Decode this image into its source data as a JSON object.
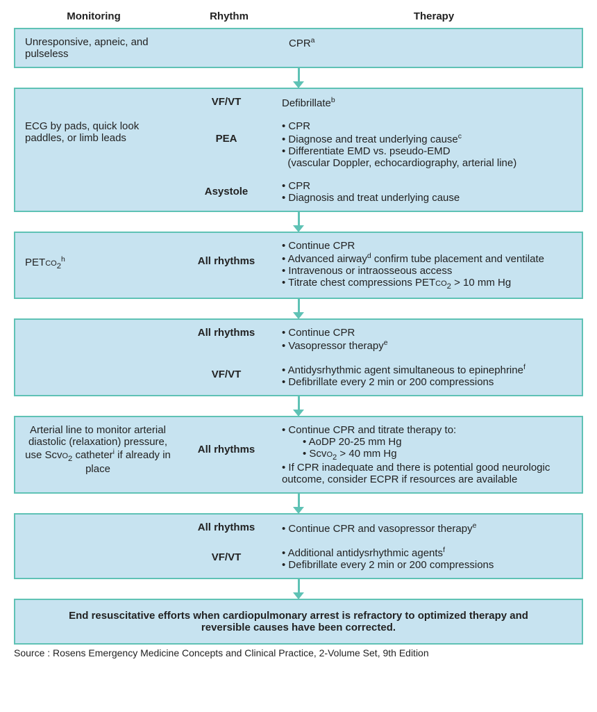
{
  "headers": {
    "monitoring": "Monitoring",
    "rhythm": "Rhythm",
    "therapy": "Therapy"
  },
  "box1": {
    "monitoring": "Unresponsive, apneic, and pulseless",
    "therapy": "CPR",
    "therapy_sup": "a"
  },
  "box2": {
    "monitoring": "ECG by pads, quick look paddles, or limb leads",
    "r1": {
      "rhythm": "VF/VT",
      "therapy": "Defibrillate",
      "sup": "b"
    },
    "r2": {
      "rhythm": "PEA",
      "items": [
        "CPR",
        "Diagnose and treat underlying cause",
        "Differentiate EMD vs. pseudo-EMD"
      ],
      "item1_sup": "c",
      "item2_note": "(vascular Doppler, echocardiography, arterial line)"
    },
    "r3": {
      "rhythm": "Asystole",
      "items": [
        "CPR",
        "Diagnosis and treat underlying cause"
      ]
    }
  },
  "box3": {
    "monitoring_html": "PET<span class='smallcap'>co</span><sub>2</sub><sup>h</sup>",
    "rhythm": "All rhythms",
    "items": [
      "Continue CPR",
      "Advanced airway",
      " confirm tube placement and ventilate",
      "Intravenous or intraosseous access"
    ],
    "item1_sup": "d",
    "last_html": "Titrate chest compressions PET<span class='smallcap'>co</span><sub>2</sub> > 10 mm Hg"
  },
  "box4": {
    "r1": {
      "rhythm": "All rhythms",
      "items": [
        "Continue CPR",
        "Vasopressor therapy"
      ],
      "item1_sup": "e"
    },
    "r2": {
      "rhythm": "VF/VT",
      "items": [
        "Antidysrhythmic agent simultaneous to epinephrine",
        "Defibrillate every 2 min or 200 compressions"
      ],
      "item0_sup": "f"
    }
  },
  "box5": {
    "monitoring_html": "Arterial line to monitor arterial diastolic (relaxation) pressure, use Scv<span class='smallcap'>o</span><sub>2</sub> catheter<sup>i</sup> if already in place",
    "rhythm": "All rhythms",
    "item0": "Continue CPR and titrate therapy to:",
    "sub0": "AoDP 20-25 mm Hg",
    "sub1_html": "Scv<span class='smallcap'>o</span><sub>2</sub> > 40 mm Hg",
    "item1": "If CPR inadequate and there is potential good neurologic outcome, consider ECPR if resources are available"
  },
  "box6": {
    "r1": {
      "rhythm": "All rhythms",
      "item": "Continue CPR and vasopressor therapy",
      "sup": "e"
    },
    "r2": {
      "rhythm": "VF/VT",
      "items": [
        "Additional antidysrhythmic agents",
        "Defibrillate every 2 min or 200 compressions"
      ],
      "item0_sup": "f"
    }
  },
  "box7": {
    "text": "End resuscitative efforts when cardiopulmonary arrest is refractory to optimized therapy and reversible causes have been corrected."
  },
  "source": "Source : Rosens Emergency Medicine Concepts and Clinical Practice, 2-Volume Set, 9th Edition",
  "style": {
    "box_bg": "#c7e3f0",
    "box_border": "#5fc2b5",
    "arrow_color": "#5fc2b5",
    "text_color": "#222222",
    "font_size_pt": 11
  }
}
